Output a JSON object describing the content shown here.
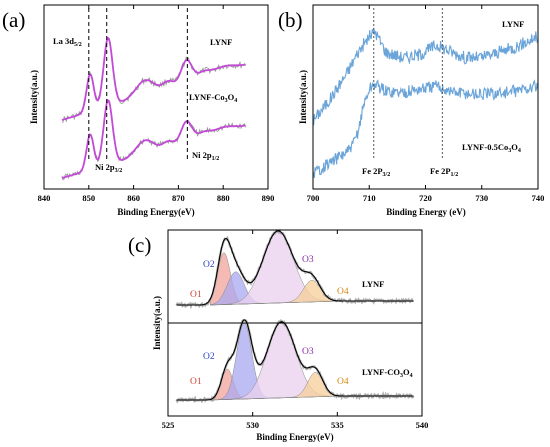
{
  "panels": {
    "a": {
      "letter": "(a)",
      "xlabel": "Binding Energy(eV)",
      "ylabel": "Intensity(a.u.)",
      "x_ticks": [
        "840",
        "850",
        "860",
        "870",
        "880",
        "890"
      ],
      "annotations": {
        "la_main": "La 3d",
        "la_sub": "5/2",
        "ni3_main": "Ni 2p",
        "ni3_sub": "3/2",
        "ni1_main": "Ni 2p",
        "ni1_sub": "1/2",
        "sample1": "LYNF",
        "sample2_main": "LYNF-Co",
        "sample2_s1": "3",
        "sample2_mid": "O",
        "sample2_s2": "4"
      }
    },
    "b": {
      "letter": "(b)",
      "xlabel": "Binding Energy (eV)",
      "ylabel": "Intensity(a.u.)",
      "x_ticks": [
        "700",
        "710",
        "720",
        "730",
        "740"
      ],
      "annotations": {
        "fe3_main": "Fe 2P",
        "fe3_sub": "3/2",
        "fe1_main": "Fe 2P",
        "fe1_sub": "1/2",
        "sample1": "LYNF",
        "sample2_main": "LYNF-0.5Co",
        "sample2_s1": "3",
        "sample2_mid": "O",
        "sample2_s2": "4"
      }
    },
    "c": {
      "letter": "(c)",
      "xlabel": "Binding Energy(eV)",
      "ylabel": "Intensity(a.u.)",
      "x_ticks": [
        "525",
        "530",
        "535",
        "540"
      ],
      "top": {
        "o1": "O1",
        "o2": "O2",
        "o3": "O3",
        "o4": "O4",
        "sample": "LYNF"
      },
      "bottom": {
        "o1": "O1",
        "o2": "O2",
        "o3": "O3",
        "o4": "O4",
        "sample_main": "LYNF-CO",
        "sample_s1": "3",
        "sample_mid": "O",
        "sample_s2": "4"
      }
    }
  },
  "colors": {
    "axis": "#000000",
    "a_fit": "#c24ad6",
    "a_raw": "#9a9a9a",
    "b_line": "#6aa4d8",
    "c_raw": "#9a9a9a",
    "c_fit": "#000000",
    "o1": "#f2a39b",
    "o2": "#a9a8f0",
    "o3": "#ead0ee",
    "o4": "#f5cf9a",
    "o1_label": "#d04535",
    "o2_label": "#2f3fcf",
    "o3_label": "#8a2aa8",
    "o4_label": "#d38a10"
  },
  "chart_data": [
    {
      "type": "line",
      "panel": "(a)",
      "xlabel": "Binding Energy(eV)",
      "ylabel": "Intensity(a.u.)",
      "xlim": [
        840,
        890
      ],
      "series_names_as_printed": [
        "LYNF",
        "LYNF-Co3O4"
      ],
      "features": [
        {
          "label": "La 3d5/2",
          "x": 850
        },
        {
          "label": "Ni 2p3/2",
          "x": 854
        },
        {
          "label": "Ni 2p1/2",
          "x": 872
        }
      ],
      "peaks": [
        {
          "center": 850.3,
          "height": 0.55,
          "width": 0.8
        },
        {
          "center": 854.3,
          "height": 1.0,
          "width": 1.0
        },
        {
          "center": 862.5,
          "height": 0.22,
          "width": 2.0
        },
        {
          "center": 871.8,
          "height": 0.33,
          "width": 1.2
        },
        {
          "center": 867.7,
          "height": 0.1,
          "width": 1.2
        },
        {
          "center": 875.5,
          "height": 0.08,
          "width": 1.5
        },
        {
          "center": 880.0,
          "height": 0.08,
          "width": 2.5
        }
      ],
      "baseline": {
        "start": 0.0,
        "end": 0.8
      },
      "series": [
        {
          "name": "LYNF",
          "offset": 1.0
        },
        {
          "name": "LYNF-Co3O4",
          "offset": 0.0
        }
      ]
    },
    {
      "type": "line",
      "panel": "(b)",
      "xlabel": "Binding Energy (eV)",
      "ylabel": "Intensity(a.u.)",
      "xlim": [
        700,
        740
      ],
      "series_names_as_printed": [
        "LYNF",
        "LYNF-0.5Co3O4"
      ],
      "features": [
        {
          "label": "Fe 2P3/2",
          "x": 710.8
        },
        {
          "label": "Fe 2P1/2",
          "x": 723
        }
      ],
      "series": [
        {
          "name": "LYNF",
          "points": [
            [
              700,
              0.35
            ],
            [
              703,
              0.55
            ],
            [
              706,
              0.8
            ],
            [
              708,
              1.0
            ],
            [
              710,
              1.15
            ],
            [
              711,
              1.2
            ],
            [
              713,
              1.0
            ],
            [
              716,
              0.95
            ],
            [
              719,
              0.98
            ],
            [
              722,
              1.07
            ],
            [
              724,
              1.02
            ],
            [
              727,
              0.95
            ],
            [
              730,
              0.95
            ],
            [
              733,
              1.0
            ],
            [
              736,
              1.05
            ],
            [
              740,
              1.15
            ]
          ]
        },
        {
          "name": "LYNF-0.5Co3O4",
          "points": [
            [
              700,
              -0.15
            ],
            [
              703,
              -0.05
            ],
            [
              706,
              0.05
            ],
            [
              707,
              0.1
            ],
            [
              708,
              0.25
            ],
            [
              709,
              0.5
            ],
            [
              710,
              0.65
            ],
            [
              711,
              0.7
            ],
            [
              713,
              0.63
            ],
            [
              716,
              0.62
            ],
            [
              719,
              0.65
            ],
            [
              722,
              0.68
            ],
            [
              725,
              0.62
            ],
            [
              730,
              0.6
            ],
            [
              735,
              0.62
            ],
            [
              740,
              0.68
            ]
          ]
        }
      ]
    },
    {
      "type": "area",
      "panel": "(c)",
      "xlabel": "Binding Energy(eV)",
      "ylabel": "Intensity(a.u.)",
      "xlim": [
        525,
        540
      ],
      "series": [
        {
          "name": "LYNF",
          "components": [
            {
              "name": "O1",
              "center": 528.3,
              "height": 0.72,
              "width": 0.38
            },
            {
              "name": "O2",
              "center": 529.0,
              "height": 0.45,
              "width": 0.5
            },
            {
              "name": "O3",
              "center": 531.5,
              "height": 1.0,
              "width": 0.9
            },
            {
              "name": "O4",
              "center": 533.5,
              "height": 0.3,
              "width": 0.5
            }
          ]
        },
        {
          "name": "LYNF-CO3O4",
          "components": [
            {
              "name": "O1",
              "center": 528.5,
              "height": 0.4,
              "width": 0.35
            },
            {
              "name": "O2",
              "center": 529.5,
              "height": 1.0,
              "width": 0.45
            },
            {
              "name": "O3",
              "center": 531.7,
              "height": 1.0,
              "width": 0.85
            },
            {
              "name": "O4",
              "center": 533.7,
              "height": 0.32,
              "width": 0.45
            }
          ]
        }
      ]
    }
  ]
}
